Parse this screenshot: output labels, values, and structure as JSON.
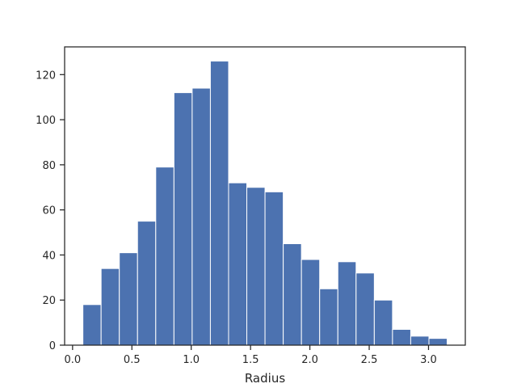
{
  "chart_data": {
    "type": "bar",
    "title": "",
    "xlabel": "Radius",
    "ylabel": "",
    "bin_edges": [
      0.087,
      0.2405,
      0.394,
      0.5475,
      0.701,
      0.8545,
      1.008,
      1.1615,
      1.315,
      1.4685,
      1.622,
      1.7755,
      1.929,
      2.0825,
      2.236,
      2.3895,
      2.543,
      2.6965,
      2.85,
      3.0035,
      3.157
    ],
    "values": [
      18,
      34,
      41,
      55,
      79,
      112,
      114,
      126,
      72,
      70,
      68,
      45,
      38,
      25,
      37,
      32,
      20,
      7,
      4,
      3
    ],
    "xlim": [
      -0.067,
      3.31
    ],
    "ylim": [
      0,
      132.3
    ],
    "xticks": [
      0.0,
      0.5,
      1.0,
      1.5,
      2.0,
      2.5,
      3.0
    ],
    "xtick_labels": [
      "0.0",
      "0.5",
      "1.0",
      "1.5",
      "2.0",
      "2.5",
      "3.0"
    ],
    "yticks": [
      0,
      20,
      40,
      60,
      80,
      100,
      120
    ],
    "ytick_labels": [
      "0",
      "20",
      "40",
      "60",
      "80",
      "100",
      "120"
    ],
    "grid": false,
    "colors": {
      "bar": "#4c72b0",
      "bar_edge": "#ffffff",
      "axes": "#262626"
    }
  }
}
